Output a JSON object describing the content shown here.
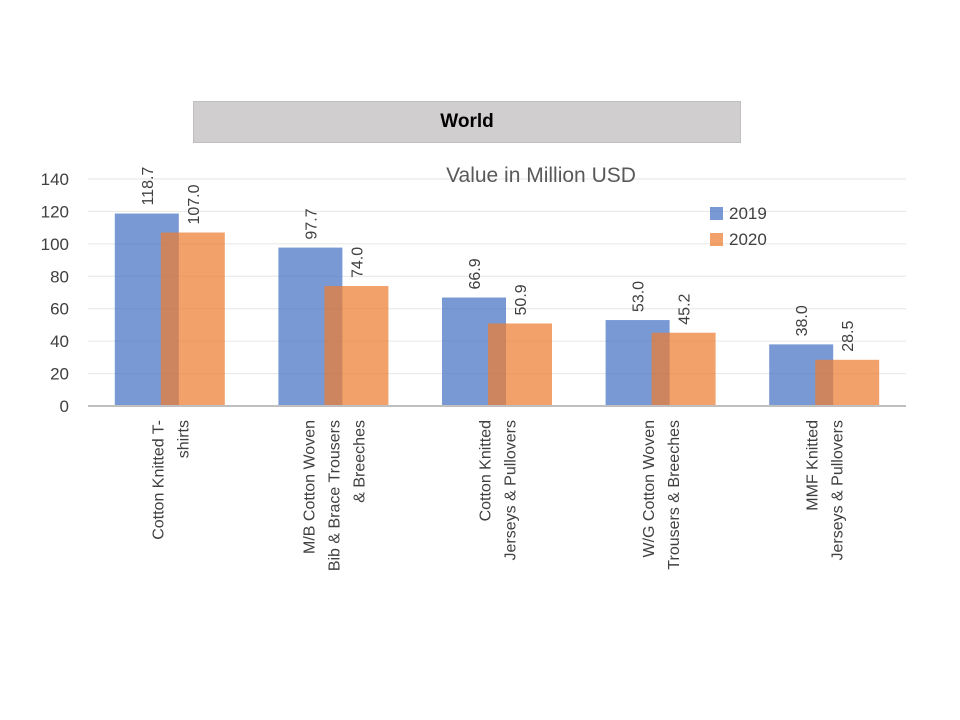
{
  "banner": {
    "label": "World"
  },
  "chart_data": {
    "type": "bar",
    "title": "Value in Million USD",
    "categories": [
      "Cotton Knitted  T-shirts",
      "M/B Cotton Woven Bib & Brace Trousers & Breeches",
      "Cotton Knitted Jerseys & Pullovers",
      "W/G Cotton Woven Trousers & Breeches",
      "MMF Knitted Jerseys & Pullovers"
    ],
    "category_lines": [
      [
        "Cotton Knitted  T-",
        "shirts"
      ],
      [
        "M/B Cotton Woven",
        "Bib & Brace Trousers",
        "& Breeches"
      ],
      [
        "Cotton Knitted",
        "Jerseys & Pullovers"
      ],
      [
        "W/G Cotton Woven",
        "Trousers & Breeches"
      ],
      [
        "MMF Knitted",
        "Jerseys & Pullovers"
      ]
    ],
    "series": [
      {
        "name": "2019",
        "values": [
          118.7,
          97.7,
          66.9,
          53.0,
          38.0
        ],
        "labels": [
          "118.7",
          "97.7",
          "66.9",
          "53.0",
          "38.0"
        ],
        "color": "#4472c4"
      },
      {
        "name": "2020",
        "values": [
          107.0,
          74.0,
          50.9,
          45.2,
          28.5
        ],
        "labels": [
          "107.0",
          "74.0",
          "50.9",
          "45.2",
          "28.5"
        ],
        "color": "#ed7d31"
      }
    ],
    "ylim": [
      0,
      140
    ],
    "yticks": [
      "0",
      "20",
      "40",
      "60",
      "80",
      "100",
      "120",
      "140"
    ],
    "grid": true,
    "legend": "right"
  }
}
